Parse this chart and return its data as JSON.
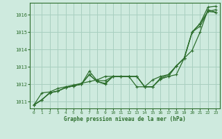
{
  "bg_color": "#ceeade",
  "grid_color": "#a8cfc0",
  "line_color": "#2d6e2d",
  "title": "Graphe pression niveau de la mer (hPa)",
  "xlim": [
    -0.5,
    23.5
  ],
  "ylim": [
    1010.6,
    1016.7
  ],
  "yticks": [
    1011,
    1012,
    1013,
    1014,
    1015,
    1016
  ],
  "xticks": [
    0,
    1,
    2,
    3,
    4,
    5,
    6,
    7,
    8,
    9,
    10,
    11,
    12,
    13,
    14,
    15,
    16,
    17,
    18,
    19,
    20,
    21,
    22,
    23
  ],
  "series": [
    {
      "x": [
        0,
        1,
        2,
        3,
        4,
        5,
        6,
        7,
        8,
        9,
        10,
        11,
        12,
        13,
        14,
        15,
        16,
        17,
        18,
        19,
        20,
        21,
        22,
        23
      ],
      "y": [
        1010.8,
        1011.1,
        1011.5,
        1011.6,
        1011.8,
        1011.9,
        1012.0,
        1012.55,
        1012.15,
        1012.0,
        1012.45,
        1012.45,
        1012.45,
        1012.45,
        1011.85,
        1011.85,
        1012.3,
        1012.45,
        1012.55,
        1013.5,
        1015.0,
        1015.5,
        1016.45,
        1016.5
      ]
    },
    {
      "x": [
        0,
        1,
        2,
        3,
        4,
        5,
        6,
        7,
        8,
        9,
        10,
        11,
        12,
        13,
        14,
        15,
        16,
        17,
        18,
        19,
        20,
        21,
        22,
        23
      ],
      "y": [
        1010.8,
        1011.1,
        1011.5,
        1011.6,
        1011.8,
        1011.9,
        1012.0,
        1012.55,
        1012.15,
        1012.05,
        1012.45,
        1012.45,
        1012.45,
        1012.45,
        1011.85,
        1011.85,
        1012.3,
        1012.45,
        1013.05,
        1013.5,
        1015.0,
        1015.5,
        1016.2,
        1016.3
      ]
    },
    {
      "x": [
        0,
        1,
        2,
        3,
        4,
        5,
        6,
        7,
        8,
        9,
        10,
        11,
        12,
        13,
        14,
        15,
        16,
        17,
        18,
        19,
        20,
        21,
        22,
        23
      ],
      "y": [
        1010.8,
        1011.1,
        1011.5,
        1011.6,
        1011.8,
        1011.9,
        1012.0,
        1012.75,
        1012.2,
        1012.2,
        1012.45,
        1012.45,
        1012.45,
        1012.45,
        1011.85,
        1011.85,
        1012.35,
        1012.55,
        1013.05,
        1013.5,
        1015.0,
        1015.35,
        1016.2,
        1016.15
      ]
    },
    {
      "x": [
        0,
        1,
        2,
        3,
        4,
        5,
        6,
        7,
        8,
        9,
        10,
        11,
        12,
        13,
        14,
        15,
        16,
        17,
        18,
        19,
        20,
        21,
        22,
        23
      ],
      "y": [
        1010.8,
        1011.5,
        1011.55,
        1011.75,
        1011.85,
        1011.95,
        1012.05,
        1012.15,
        1012.25,
        1012.45,
        1012.45,
        1012.45,
        1012.45,
        1011.85,
        1011.85,
        1012.25,
        1012.45,
        1012.55,
        1013.05,
        1013.5,
        1013.95,
        1015.0,
        1016.3,
        1016.15
      ]
    }
  ]
}
